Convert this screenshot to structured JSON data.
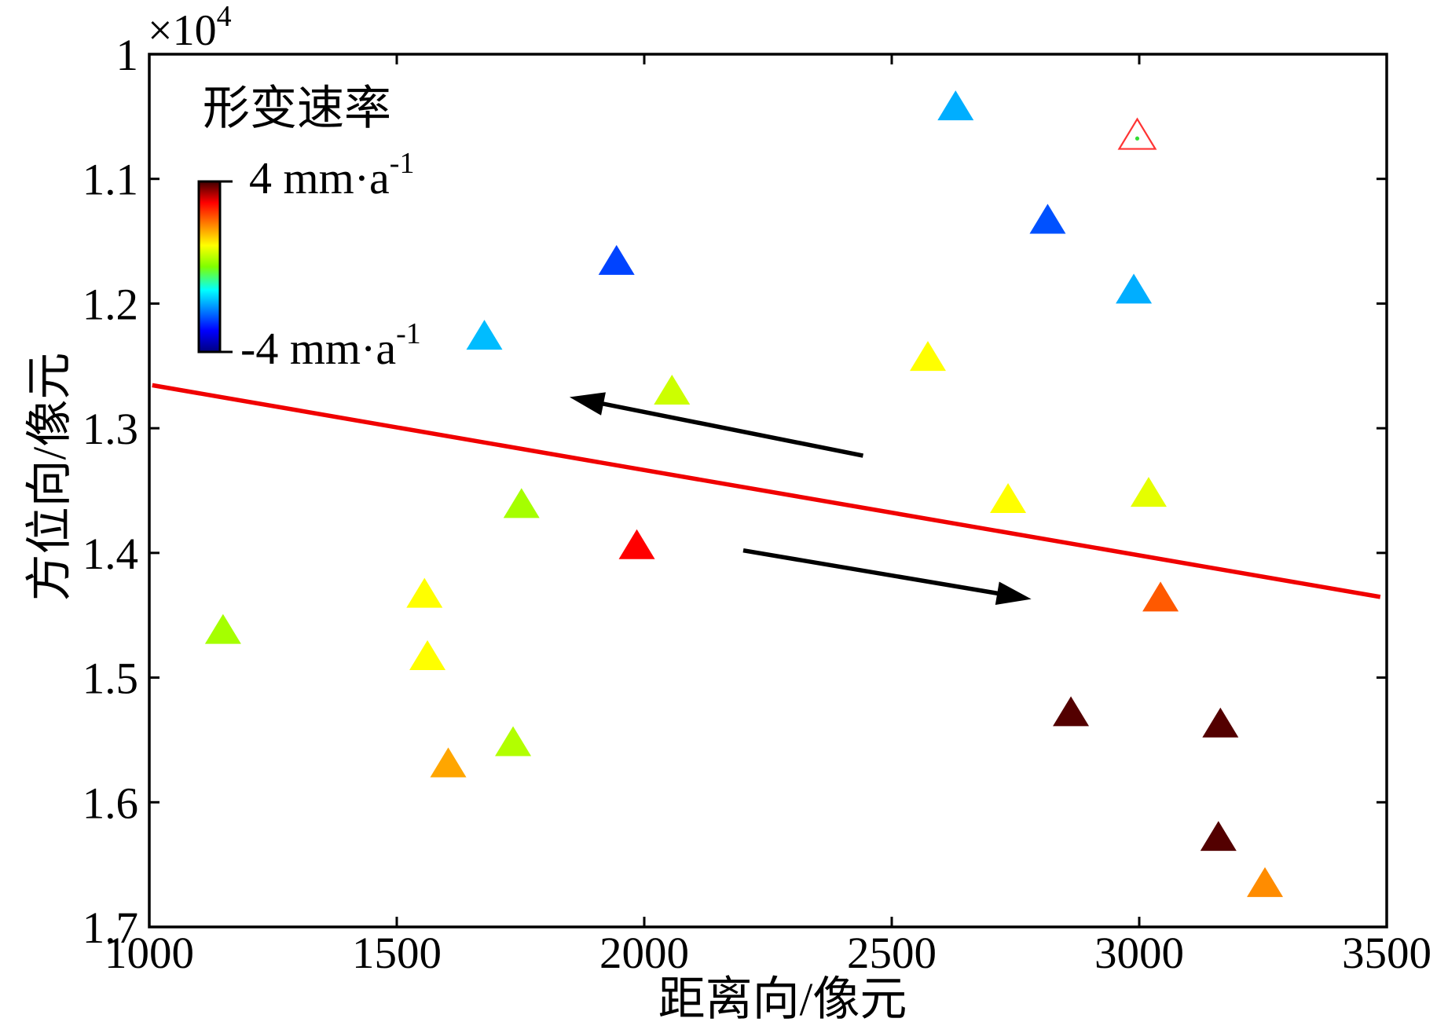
{
  "chart_data": {
    "type": "scatter",
    "xlabel": "距离向/像元",
    "ylabel": "方位向/像元",
    "xlim": [
      1000,
      3500
    ],
    "ylim": [
      1.0,
      1.7
    ],
    "y_reversed": true,
    "grid": false,
    "y_multiplier": {
      "base": "×10",
      "exponent": "4"
    },
    "x_ticks": [
      1000,
      1500,
      2000,
      2500,
      3000,
      3500
    ],
    "x_tick_labels": [
      "1000",
      "1500",
      "2000",
      "2500",
      "3000",
      "3500"
    ],
    "y_ticks": [
      1.0,
      1.1,
      1.2,
      1.3,
      1.4,
      1.5,
      1.6,
      1.7
    ],
    "y_tick_labels": [
      "1",
      "1.1",
      "1.2",
      "1.3",
      "1.4",
      "1.5",
      "1.6",
      "1.7"
    ],
    "colorbar": {
      "title": "形变速率",
      "min": -4,
      "max": 4,
      "max_label": "4 mm·a",
      "max_label_exponent": "-1",
      "min_label": "-4 mm·a",
      "min_label_exponent": "-1",
      "colormap": [
        [
          -4,
          "#000080"
        ],
        [
          -3,
          "#0000ff"
        ],
        [
          -1.1,
          "#00ffff"
        ],
        [
          0,
          "#7fff00"
        ],
        [
          1,
          "#ffff00"
        ],
        [
          3,
          "#ff0000"
        ],
        [
          4,
          "#400000"
        ]
      ]
    },
    "points": [
      {
        "x": 2629,
        "y": 1.041,
        "rate": -1.7
      },
      {
        "x": 2815,
        "y": 1.132,
        "rate": -2.4
      },
      {
        "x": 1944,
        "y": 1.165,
        "rate": -2.5
      },
      {
        "x": 2989,
        "y": 1.188,
        "rate": -1.7
      },
      {
        "x": 1677,
        "y": 1.225,
        "rate": -1.6
      },
      {
        "x": 2573,
        "y": 1.242,
        "rate": 1.0
      },
      {
        "x": 2056,
        "y": 1.269,
        "rate": 0.6
      },
      {
        "x": 2735,
        "y": 1.356,
        "rate": 1.0
      },
      {
        "x": 3019,
        "y": 1.351,
        "rate": 0.8
      },
      {
        "x": 1752,
        "y": 1.36,
        "rate": 0.3
      },
      {
        "x": 1985,
        "y": 1.393,
        "rate": 3.0
      },
      {
        "x": 1556,
        "y": 1.432,
        "rate": 1.0
      },
      {
        "x": 3043,
        "y": 1.435,
        "rate": 2.3
      },
      {
        "x": 1149,
        "y": 1.461,
        "rate": 0.3
      },
      {
        "x": 1562,
        "y": 1.482,
        "rate": 1.0
      },
      {
        "x": 2862,
        "y": 1.527,
        "rate": 3.9
      },
      {
        "x": 3164,
        "y": 1.536,
        "rate": 3.9
      },
      {
        "x": 1735,
        "y": 1.551,
        "rate": 0.4
      },
      {
        "x": 1604,
        "y": 1.568,
        "rate": 1.7
      },
      {
        "x": 3160,
        "y": 1.627,
        "rate": 3.9
      },
      {
        "x": 3254,
        "y": 1.664,
        "rate": 1.9
      }
    ],
    "hollow_point": {
      "x": 2996,
      "y": 1.064,
      "edge_color": "#ff3333",
      "dot_color": "#33dd33"
    },
    "boundary_line": {
      "x": [
        1006,
        3487
      ],
      "y": [
        1.2655,
        1.4353
      ],
      "color": "#f00000"
    },
    "arrows": [
      {
        "from": [
          2442,
          1.322
        ],
        "to": [
          1849,
          1.275
        ],
        "color": "#000000"
      },
      {
        "from": [
          2200,
          1.398
        ],
        "to": [
          2782,
          1.437
        ],
        "color": "#000000"
      }
    ]
  }
}
